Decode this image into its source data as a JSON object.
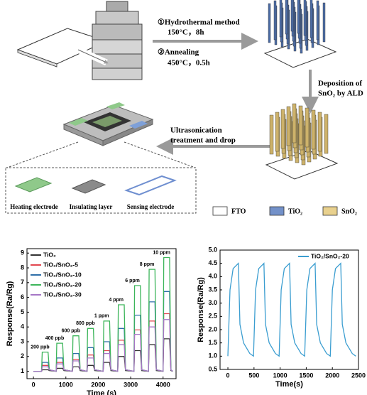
{
  "schematic": {
    "step1": [
      "①Hydrothermal method",
      "150°C，8h"
    ],
    "step2": [
      "②Annealing",
      "450°C，0.5h"
    ],
    "step3": [
      "Deposition of",
      "SnO₂ by ALD"
    ],
    "step4": [
      "Ultrasonication",
      "treatment and drop"
    ],
    "device_parts": [
      "Heating electrode",
      "Insulating layer",
      "Sensing electrode"
    ],
    "legend": [
      {
        "label": "FTO",
        "color": "#ffffff"
      },
      {
        "label": "TiO₂",
        "color": "#7391c9"
      },
      {
        "label": "SnO₂",
        "color": "#e9d18e"
      }
    ]
  },
  "chart_data": [
    {
      "type": "line",
      "x_label": "Time (s)",
      "y_label": "Response(Ra/Rg)",
      "x": [
        0,
        250,
        270,
        450,
        490,
        700,
        720,
        900,
        940,
        1200,
        1220,
        1400,
        1440,
        1650,
        1670,
        1850,
        1890,
        2150,
        2170,
        2350,
        2390,
        2600,
        2620,
        2800,
        2840,
        3100,
        3120,
        3300,
        3340,
        3550,
        3570,
        3750,
        3790,
        4000,
        4020,
        4200,
        4240,
        4300
      ],
      "series": [
        {
          "name": "TiO₂",
          "color": "#333333",
          "values": [
            1,
            1,
            1.1,
            1.1,
            1.05,
            1,
            1.2,
            1.2,
            1.05,
            1,
            1.3,
            1.3,
            1.05,
            1,
            1.4,
            1.4,
            1.05,
            1,
            1.6,
            1.6,
            1.05,
            1,
            2.0,
            2.0,
            1.05,
            1,
            2.4,
            2.4,
            1.05,
            1,
            2.8,
            2.8,
            1.05,
            1,
            3.2,
            3.2,
            1.05,
            1
          ]
        },
        {
          "name": "TiO₂/SnO₂-5",
          "color": "#e2474f",
          "values": [
            1,
            1,
            1.4,
            1.4,
            1.1,
            1,
            1.6,
            1.6,
            1.1,
            1,
            1.8,
            1.8,
            1.1,
            1,
            2.1,
            2.1,
            1.1,
            1,
            2.4,
            2.4,
            1.1,
            1,
            3.1,
            3.1,
            1.1,
            1,
            3.8,
            3.8,
            1.1,
            1,
            4.4,
            4.4,
            1.1,
            1,
            4.9,
            4.9,
            1.1,
            1
          ]
        },
        {
          "name": "TiO₂/SnO₂-10",
          "color": "#2f6fa8",
          "values": [
            1,
            1,
            1.6,
            1.6,
            1.1,
            1,
            1.9,
            1.9,
            1.1,
            1,
            2.2,
            2.2,
            1.1,
            1,
            2.6,
            2.6,
            1.1,
            1,
            3.0,
            3.0,
            1.1,
            1,
            3.9,
            3.9,
            1.1,
            1,
            4.8,
            4.8,
            1.1,
            1,
            5.7,
            5.7,
            1.1,
            1,
            6.4,
            6.4,
            1.1,
            1
          ]
        },
        {
          "name": "TiO₂/SnO₂-20",
          "color": "#3cb55a",
          "values": [
            1,
            1,
            2.3,
            2.3,
            1.1,
            1,
            2.9,
            2.9,
            1.1,
            1,
            3.4,
            3.4,
            1.1,
            1,
            3.9,
            3.9,
            1.1,
            1,
            4.4,
            4.4,
            1.1,
            1,
            5.5,
            5.5,
            1.1,
            1,
            6.8,
            6.8,
            1.1,
            1,
            7.9,
            7.9,
            1.1,
            1,
            8.7,
            8.7,
            1.1,
            1
          ]
        },
        {
          "name": "TiO₂/SnO₂-30",
          "color": "#a676c6",
          "values": [
            1,
            1,
            1.3,
            1.3,
            1.1,
            1,
            1.5,
            1.5,
            1.1,
            1,
            1.7,
            1.7,
            1.1,
            1,
            1.9,
            1.9,
            1.1,
            1,
            2.2,
            2.2,
            1.1,
            1,
            2.8,
            2.8,
            1.1,
            1,
            3.5,
            3.5,
            1.1,
            1,
            4.0,
            4.0,
            1.1,
            1,
            4.5,
            4.5,
            1.1,
            1
          ]
        }
      ],
      "annotations": [
        "200 ppb",
        "400 ppb",
        "600 ppb",
        "800 ppb",
        "1 ppm",
        "4 ppm",
        "6 ppm",
        "8 ppm",
        "10 ppm"
      ],
      "xlim": [
        -200,
        4400
      ],
      "xticks": [
        0,
        1000,
        2000,
        3000,
        4000
      ],
      "ylim": [
        0.5,
        9.3
      ],
      "yticks": [
        1,
        2,
        3,
        4,
        5,
        6,
        7,
        8,
        9
      ],
      "legend": "upper left"
    },
    {
      "type": "line",
      "x_label": "Time(s)",
      "y_label": "Response(Ra/Rg)",
      "x": [
        0,
        40,
        100,
        200,
        230,
        300,
        420,
        490,
        530,
        590,
        690,
        720,
        790,
        910,
        980,
        1020,
        1080,
        1180,
        1210,
        1280,
        1400,
        1470,
        1510,
        1570,
        1670,
        1700,
        1770,
        1890,
        1960,
        2000,
        2060,
        2160,
        2190,
        2260,
        2380,
        2450
      ],
      "series": [
        {
          "name": "TiO₂/SnO₂-20",
          "color": "#3a9dd0",
          "values": [
            1.0,
            3.5,
            4.3,
            4.5,
            2.2,
            1.5,
            1.1,
            1.0,
            3.5,
            4.3,
            4.5,
            2.2,
            1.5,
            1.1,
            1.0,
            3.5,
            4.3,
            4.5,
            2.2,
            1.5,
            1.1,
            1.0,
            3.5,
            4.3,
            4.5,
            2.2,
            1.5,
            1.1,
            1.0,
            3.5,
            4.3,
            4.5,
            2.2,
            1.5,
            1.1,
            1.0
          ]
        }
      ],
      "xlim": [
        -150,
        2500
      ],
      "xticks": [
        0,
        500,
        1000,
        1500,
        2000,
        2500
      ],
      "ylim": [
        0.5,
        5.0
      ],
      "yticks": [
        {
          "value": 0.5,
          "label": "0.5"
        },
        {
          "value": 1.0,
          "label": "1.0"
        },
        {
          "value": 1.5,
          "label": "1.5"
        },
        {
          "value": 2.0,
          "label": "2.0"
        },
        {
          "value": 2.5,
          "label": "2.5"
        },
        {
          "value": 3.0,
          "label": "3.0"
        },
        {
          "value": 3.5,
          "label": "3.5"
        },
        {
          "value": 4.0,
          "label": "4.0"
        },
        {
          "value": 4.5,
          "label": "4.5"
        },
        {
          "value": 5.0,
          "label": "5.0"
        }
      ],
      "legend": "upper right"
    }
  ]
}
